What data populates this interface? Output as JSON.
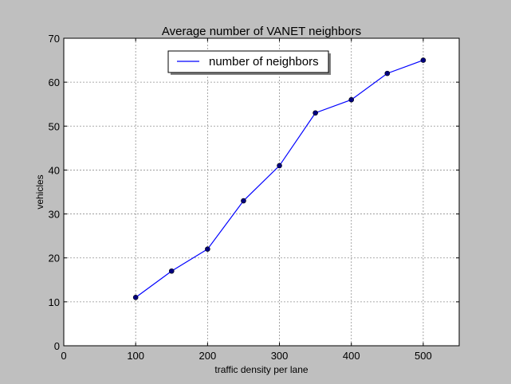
{
  "chart_data": {
    "type": "line",
    "title": "Average number of VANET neighbors",
    "xlabel": "traffic density per lane",
    "ylabel": "vehicles",
    "xlim": [
      0,
      550
    ],
    "ylim": [
      0,
      70
    ],
    "xticks": [
      0,
      100,
      200,
      300,
      400,
      500
    ],
    "yticks": [
      0,
      10,
      20,
      30,
      40,
      50,
      60,
      70
    ],
    "grid": true,
    "legend_position": "top-center",
    "x": [
      100,
      150,
      200,
      250,
      300,
      350,
      400,
      450,
      500
    ],
    "series": [
      {
        "name": "number of neighbors",
        "color": "#0000ff",
        "marker_color": "#000080",
        "values": [
          11,
          17,
          22,
          33,
          41,
          53,
          56,
          62,
          65
        ]
      }
    ]
  }
}
